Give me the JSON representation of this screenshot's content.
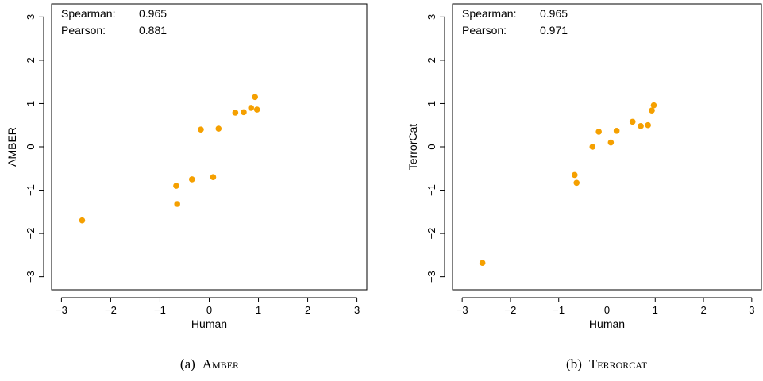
{
  "colors": {
    "point": "#F5A000",
    "axis": "#000000",
    "background": "#ffffff"
  },
  "chart_data": [
    {
      "type": "scatter",
      "xlabel": "Human",
      "ylabel": "AMBER",
      "xlim": [
        -3.2,
        3.2
      ],
      "ylim": [
        -3.3,
        3.3
      ],
      "xticks": [
        -3,
        -2,
        -1,
        0,
        1,
        2,
        3
      ],
      "yticks": [
        -3,
        -2,
        -1,
        0,
        1,
        2,
        3
      ],
      "tick_labels": [
        "−3",
        "−2",
        "−1",
        "0",
        "1",
        "2",
        "3"
      ],
      "stats": [
        {
          "label": "Spearman:",
          "value": "0.965"
        },
        {
          "label": "Pearson:",
          "value": "0.881"
        }
      ],
      "caption": {
        "prefix": "(a)",
        "title": "Amber"
      },
      "points": [
        {
          "x": -2.58,
          "y": -1.7
        },
        {
          "x": -0.67,
          "y": -0.9
        },
        {
          "x": -0.65,
          "y": -1.32
        },
        {
          "x": -0.35,
          "y": -0.75
        },
        {
          "x": -0.17,
          "y": 0.4
        },
        {
          "x": 0.08,
          "y": -0.7
        },
        {
          "x": 0.19,
          "y": 0.42
        },
        {
          "x": 0.53,
          "y": 0.79
        },
        {
          "x": 0.7,
          "y": 0.8
        },
        {
          "x": 0.85,
          "y": 0.9
        },
        {
          "x": 0.93,
          "y": 1.15
        },
        {
          "x": 0.97,
          "y": 0.86
        }
      ]
    },
    {
      "type": "scatter",
      "xlabel": "Human",
      "ylabel": "TerrorCat",
      "xlim": [
        -3.2,
        3.2
      ],
      "ylim": [
        -3.3,
        3.3
      ],
      "xticks": [
        -3,
        -2,
        -1,
        0,
        1,
        2,
        3
      ],
      "yticks": [
        -3,
        -2,
        -1,
        0,
        1,
        2,
        3
      ],
      "tick_labels": [
        "−3",
        "−2",
        "−1",
        "0",
        "1",
        "2",
        "3"
      ],
      "stats": [
        {
          "label": "Spearman:",
          "value": "0.965"
        },
        {
          "label": "Pearson:",
          "value": "0.971"
        }
      ],
      "caption": {
        "prefix": "(b)",
        "title": "Terrorcat"
      },
      "points": [
        {
          "x": -2.58,
          "y": -2.68
        },
        {
          "x": -0.67,
          "y": -0.65
        },
        {
          "x": -0.63,
          "y": -0.83
        },
        {
          "x": -0.3,
          "y": 0.0
        },
        {
          "x": -0.17,
          "y": 0.35
        },
        {
          "x": 0.08,
          "y": 0.1
        },
        {
          "x": 0.2,
          "y": 0.37
        },
        {
          "x": 0.53,
          "y": 0.58
        },
        {
          "x": 0.7,
          "y": 0.48
        },
        {
          "x": 0.85,
          "y": 0.5
        },
        {
          "x": 0.93,
          "y": 0.84
        },
        {
          "x": 0.97,
          "y": 0.96
        }
      ]
    }
  ]
}
